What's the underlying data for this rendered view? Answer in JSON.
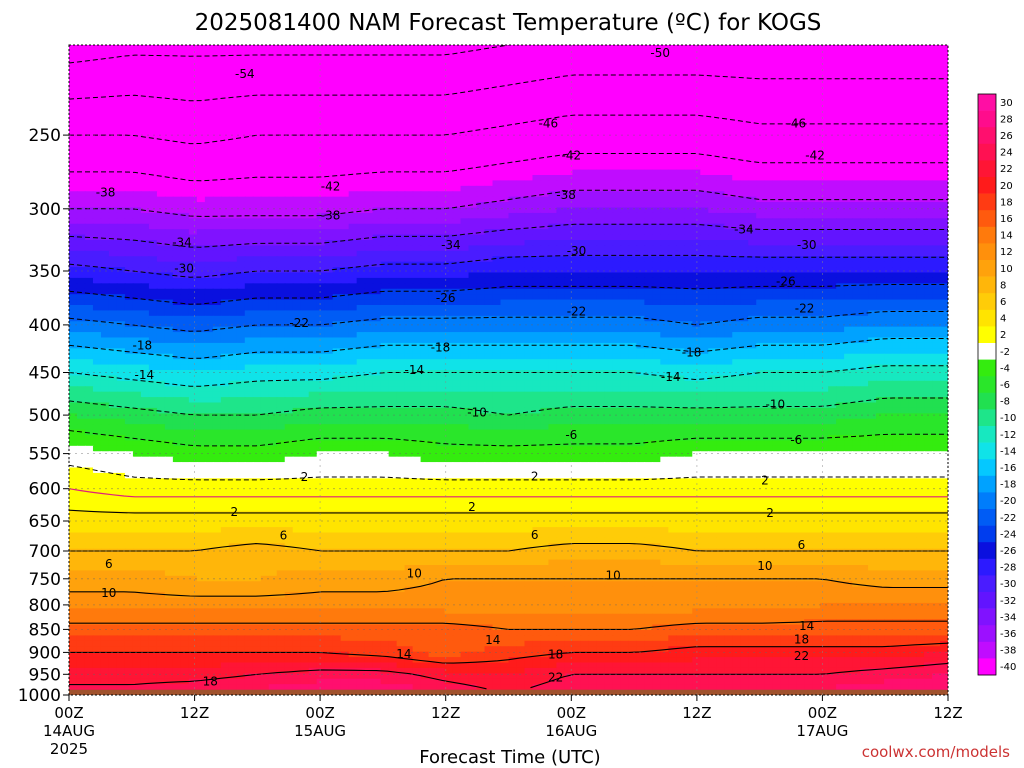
{
  "chart_data": {
    "type": "heatmap",
    "title": "2025081400 NAM Forecast Temperature (ºC) for KOGS",
    "xlabel": "Forecast Time (UTC)",
    "ylabel": "",
    "credit": "coolwx.com/models",
    "x_ticks": [
      {
        "hour": 0,
        "label": "00Z",
        "sub": "14AUG",
        "sub2": "2025"
      },
      {
        "hour": 12,
        "label": "12Z",
        "sub": "",
        "sub2": ""
      },
      {
        "hour": 24,
        "label": "00Z",
        "sub": "15AUG",
        "sub2": ""
      },
      {
        "hour": 36,
        "label": "12Z",
        "sub": "",
        "sub2": ""
      },
      {
        "hour": 48,
        "label": "00Z",
        "sub": "16AUG",
        "sub2": ""
      },
      {
        "hour": 60,
        "label": "12Z",
        "sub": "",
        "sub2": ""
      },
      {
        "hour": 72,
        "label": "00Z",
        "sub": "17AUG",
        "sub2": ""
      },
      {
        "hour": 84,
        "label": "12Z",
        "sub": "",
        "sub2": ""
      }
    ],
    "xlim_hours": [
      0,
      84
    ],
    "y_ticks": [
      250,
      300,
      350,
      400,
      450,
      500,
      550,
      600,
      650,
      700,
      750,
      800,
      850,
      900,
      950,
      1000
    ],
    "ylim_hpa": [
      200,
      1000
    ],
    "y_scale": "log",
    "x": [
      0,
      6,
      12,
      18,
      24,
      30,
      36,
      42,
      48,
      54,
      60,
      66,
      72,
      78,
      84
    ],
    "profiles": [
      {
        "p": 200,
        "t": [
          -56,
          -55,
          -55,
          -55,
          -55,
          -55,
          -55,
          -54,
          -53,
          -53,
          -53,
          -53,
          -53,
          -53,
          -53
        ]
      },
      {
        "p": 250,
        "t": [
          -46,
          -46,
          -47,
          -46,
          -46,
          -46,
          -46,
          -45,
          -44,
          -44,
          -44,
          -45,
          -45,
          -45,
          -45
        ]
      },
      {
        "p": 300,
        "t": [
          -38,
          -38,
          -39,
          -39,
          -39,
          -38,
          -38,
          -37,
          -36,
          -36,
          -36,
          -37,
          -37,
          -37,
          -37
        ]
      },
      {
        "p": 350,
        "t": [
          -29,
          -30,
          -31,
          -30,
          -30,
          -29,
          -29,
          -28,
          -28,
          -28,
          -28,
          -28,
          -28,
          -28,
          -28
        ]
      },
      {
        "p": 400,
        "t": [
          -21,
          -22,
          -23,
          -22,
          -22,
          -21,
          -21,
          -21,
          -21,
          -21,
          -22,
          -21,
          -21,
          -20,
          -20
        ]
      },
      {
        "p": 450,
        "t": [
          -14,
          -15,
          -16,
          -15,
          -15,
          -14,
          -14,
          -14,
          -14,
          -14,
          -15,
          -14,
          -14,
          -13,
          -13
        ]
      },
      {
        "p": 500,
        "t": [
          -8,
          -9,
          -10,
          -10,
          -9,
          -9,
          -9,
          -10,
          -9,
          -9,
          -9,
          -9,
          -9,
          -8,
          -8
        ]
      },
      {
        "p": 550,
        "t": [
          -3,
          -4,
          -5,
          -5,
          -4,
          -4,
          -5,
          -5,
          -5,
          -5,
          -4,
          -4,
          -4,
          -4,
          -4
        ]
      },
      {
        "p": 600,
        "t": [
          0,
          -1,
          -1,
          -1,
          -1,
          -1,
          -1,
          -1,
          -1,
          -1,
          -1,
          -1,
          -1,
          -1,
          -1
        ]
      },
      {
        "p": 650,
        "t": [
          3,
          3,
          3,
          3,
          3,
          3,
          3,
          3,
          3,
          3,
          3,
          3,
          3,
          3,
          3
        ]
      },
      {
        "p": 700,
        "t": [
          6,
          6,
          6,
          7,
          6,
          6,
          6,
          6,
          7,
          7,
          6,
          6,
          6,
          6,
          6
        ]
      },
      {
        "p": 750,
        "t": [
          9,
          9,
          8,
          8,
          9,
          9,
          10,
          10,
          10,
          10,
          10,
          10,
          10,
          9,
          9
        ]
      },
      {
        "p": 800,
        "t": [
          11,
          11,
          11,
          11,
          11,
          11,
          11,
          11,
          11,
          11,
          11,
          11,
          12,
          12,
          12
        ]
      },
      {
        "p": 850,
        "t": [
          15,
          15,
          15,
          15,
          15,
          15,
          15,
          14,
          14,
          14,
          15,
          15,
          15,
          15,
          15
        ]
      },
      {
        "p": 900,
        "t": [
          18,
          18,
          18,
          18,
          18,
          17,
          15,
          17,
          18,
          18,
          19,
          19,
          19,
          19,
          20
        ]
      },
      {
        "p": 950,
        "t": [
          21,
          21,
          21,
          22,
          23,
          23,
          21,
          20,
          22,
          22,
          22,
          22,
          22,
          23,
          24
        ]
      },
      {
        "p": 1000,
        "t": [
          23,
          23,
          24,
          25,
          26,
          26,
          24,
          22,
          24,
          25,
          25,
          25,
          25,
          26,
          27
        ]
      }
    ],
    "surface_pressure_hpa": 987,
    "colorbar": {
      "labels": [
        "30",
        "28",
        "26",
        "24",
        "22",
        "20",
        "18",
        "16",
        "14",
        "12",
        "10",
        "8",
        "6",
        "4",
        "2",
        "-2",
        "-4",
        "-6",
        "-8",
        "-10",
        "-12",
        "-14",
        "-16",
        "-18",
        "-20",
        "-22",
        "-24",
        "-26",
        "-28",
        "-30",
        "-32",
        "-34",
        "-36",
        "-38",
        "-40"
      ],
      "colors": [
        "#ff0ea4",
        "#ff0c8c",
        "#ff0f6e",
        "#ff1152",
        "#ff1535",
        "#ff1b1b",
        "#ff3b13",
        "#ff5a0e",
        "#ff7a0c",
        "#ff900c",
        "#ffa20c",
        "#ffb60a",
        "#ffcc08",
        "#ffe400",
        "#ffff00",
        "#ffffff",
        "#34ec0f",
        "#2ae62a",
        "#21e050",
        "#1ee58a",
        "#17e8c0",
        "#10e3e8",
        "#05c8ff",
        "#00a2ff",
        "#007dfb",
        "#005cf5",
        "#003dee",
        "#0a10df",
        "#2c1aff",
        "#4a1cff",
        "#6214ff",
        "#8012ff",
        "#9c10ff",
        "#c00cff",
        "#ff00ff"
      ],
      "ground_color": "#a0522d"
    },
    "isotherms_solid": [
      2,
      6,
      10,
      14,
      18,
      22
    ],
    "isotherms_dashed": [
      -2,
      -6,
      -10,
      -14,
      -18,
      -22,
      -26,
      -30,
      -34,
      -38,
      -42,
      -46,
      -50,
      -54
    ],
    "freezing_line_color": "#e0207a",
    "contour_labels": [
      {
        "v": "-54",
        "h": 16.8,
        "p": 215
      },
      {
        "v": "-50",
        "h": 56.5,
        "p": 204
      },
      {
        "v": "-46",
        "h": 45.8,
        "p": 243
      },
      {
        "v": "-46",
        "h": 69.5,
        "p": 243
      },
      {
        "v": "-42",
        "h": 48.0,
        "p": 263
      },
      {
        "v": "-42",
        "h": 71.3,
        "p": 263
      },
      {
        "v": "-42",
        "h": 25.0,
        "p": 284
      },
      {
        "v": "-38",
        "h": 3.5,
        "p": 288
      },
      {
        "v": "-38",
        "h": 25.0,
        "p": 305
      },
      {
        "v": "-38",
        "h": 47.5,
        "p": 290
      },
      {
        "v": "-34",
        "h": 10.8,
        "p": 326
      },
      {
        "v": "-34",
        "h": 36.5,
        "p": 328
      },
      {
        "v": "-34",
        "h": 64.5,
        "p": 316
      },
      {
        "v": "-30",
        "h": 11.0,
        "p": 348
      },
      {
        "v": "-30",
        "h": 48.5,
        "p": 333
      },
      {
        "v": "-30",
        "h": 70.5,
        "p": 328
      },
      {
        "v": "-26",
        "h": 36.0,
        "p": 374
      },
      {
        "v": "-26",
        "h": 68.5,
        "p": 359
      },
      {
        "v": "-22",
        "h": 22.0,
        "p": 398
      },
      {
        "v": "-22",
        "h": 48.5,
        "p": 387
      },
      {
        "v": "-22",
        "h": 70.3,
        "p": 384
      },
      {
        "v": "-18",
        "h": 7.0,
        "p": 421
      },
      {
        "v": "-18",
        "h": 35.5,
        "p": 423
      },
      {
        "v": "-18",
        "h": 59.5,
        "p": 428
      },
      {
        "v": "-14",
        "h": 7.2,
        "p": 453
      },
      {
        "v": "-14",
        "h": 33.0,
        "p": 447
      },
      {
        "v": "-14",
        "h": 57.5,
        "p": 455
      },
      {
        "v": "-10",
        "h": 39.0,
        "p": 497
      },
      {
        "v": "-10",
        "h": 67.5,
        "p": 487
      },
      {
        "v": "-6",
        "h": 48.0,
        "p": 525
      },
      {
        "v": "-6",
        "h": 69.5,
        "p": 532
      },
      {
        "v": "2",
        "h": 22.5,
        "p": 583
      },
      {
        "v": "2",
        "h": 44.5,
        "p": 582
      },
      {
        "v": "2",
        "h": 66.5,
        "p": 588
      },
      {
        "v": "2",
        "h": 15.8,
        "p": 636
      },
      {
        "v": "2",
        "h": 38.5,
        "p": 628
      },
      {
        "v": "2",
        "h": 67.0,
        "p": 637
      },
      {
        "v": "6",
        "h": 20.5,
        "p": 674
      },
      {
        "v": "6",
        "h": 44.5,
        "p": 673
      },
      {
        "v": "6",
        "h": 70.0,
        "p": 690
      },
      {
        "v": "6",
        "h": 3.8,
        "p": 723
      },
      {
        "v": "10",
        "h": 33.0,
        "p": 740
      },
      {
        "v": "10",
        "h": 52.0,
        "p": 744
      },
      {
        "v": "10",
        "h": 66.5,
        "p": 727
      },
      {
        "v": "10",
        "h": 3.8,
        "p": 777
      },
      {
        "v": "14",
        "h": 70.5,
        "p": 843
      },
      {
        "v": "14",
        "h": 40.5,
        "p": 873
      },
      {
        "v": "14",
        "h": 32.0,
        "p": 903
      },
      {
        "v": "18",
        "h": 70.0,
        "p": 872
      },
      {
        "v": "18",
        "h": 46.5,
        "p": 905
      },
      {
        "v": "18",
        "h": 13.5,
        "p": 967
      },
      {
        "v": "22",
        "h": 70.0,
        "p": 908
      },
      {
        "v": "22",
        "h": 46.5,
        "p": 958
      }
    ]
  }
}
